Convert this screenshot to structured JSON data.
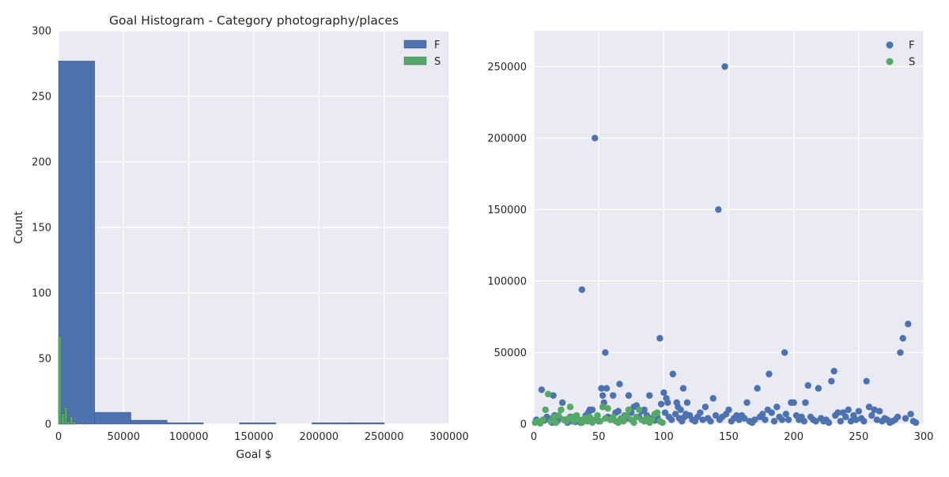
{
  "chart_data": [
    {
      "type": "bar",
      "title": "Goal Histogram - Category photography/places",
      "xlabel": "Goal $",
      "ylabel": "Count",
      "xlim": [
        0,
        300000
      ],
      "ylim": [
        0,
        300
      ],
      "xticks": [
        0,
        50000,
        100000,
        150000,
        200000,
        250000,
        300000
      ],
      "yticks": [
        0,
        50,
        100,
        150,
        200,
        250,
        300
      ],
      "grid": true,
      "legend_position": "top-right",
      "colors": {
        "background": "#eaeaf2",
        "grid": "#ffffff",
        "F": "#4c72b0",
        "S": "#55a868"
      },
      "series": [
        {
          "name": "F",
          "bins": [
            {
              "x0": 0,
              "x1": 27800,
              "count": 277
            },
            {
              "x0": 27800,
              "x1": 55600,
              "count": 9
            },
            {
              "x0": 55600,
              "x1": 83400,
              "count": 3
            },
            {
              "x0": 83400,
              "x1": 111200,
              "count": 1
            },
            {
              "x0": 111200,
              "x1": 139000,
              "count": 0
            },
            {
              "x0": 139000,
              "x1": 166800,
              "count": 1
            },
            {
              "x0": 166800,
              "x1": 194600,
              "count": 0
            },
            {
              "x0": 194600,
              "x1": 222400,
              "count": 1
            },
            {
              "x0": 222400,
              "x1": 250200,
              "count": 1
            }
          ]
        },
        {
          "name": "S",
          "bins": [
            {
              "x0": 0,
              "x1": 2200,
              "count": 67
            },
            {
              "x0": 2200,
              "x1": 4400,
              "count": 8
            },
            {
              "x0": 4400,
              "x1": 6600,
              "count": 13
            },
            {
              "x0": 6600,
              "x1": 8800,
              "count": 2
            },
            {
              "x0": 8800,
              "x1": 11000,
              "count": 6
            },
            {
              "x0": 11000,
              "x1": 13200,
              "count": 2
            },
            {
              "x0": 13200,
              "x1": 15400,
              "count": 0
            },
            {
              "x0": 15400,
              "x1": 17600,
              "count": 0
            },
            {
              "x0": 17600,
              "x1": 19800,
              "count": 0
            },
            {
              "x0": 19800,
              "x1": 22000,
              "count": 1
            }
          ]
        }
      ]
    },
    {
      "type": "scatter",
      "xlim": [
        0,
        300
      ],
      "ylim": [
        0,
        275000
      ],
      "xticks": [
        0,
        50,
        100,
        150,
        200,
        250,
        300
      ],
      "yticks": [
        0,
        50000,
        100000,
        150000,
        200000,
        250000
      ],
      "grid": true,
      "legend_position": "top-right",
      "colors": {
        "background": "#eaeaf2",
        "grid": "#ffffff",
        "F": "#4c72b0",
        "S": "#55a868"
      },
      "series": [
        {
          "name": "F",
          "points": [
            [
              2,
              3000
            ],
            [
              4,
              1500
            ],
            [
              6,
              24000
            ],
            [
              8,
              2500
            ],
            [
              10,
              5000
            ],
            [
              12,
              3000
            ],
            [
              14,
              1000
            ],
            [
              15,
              20000
            ],
            [
              16,
              6000
            ],
            [
              18,
              2000
            ],
            [
              20,
              4000
            ],
            [
              22,
              15000
            ],
            [
              24,
              3000
            ],
            [
              26,
              1000
            ],
            [
              28,
              5000
            ],
            [
              30,
              2000
            ],
            [
              32,
              1500
            ],
            [
              34,
              3000
            ],
            [
              36,
              1000
            ],
            [
              37,
              94000
            ],
            [
              40,
              6000
            ],
            [
              42,
              8000
            ],
            [
              43,
              10000
            ],
            [
              45,
              10000
            ],
            [
              47,
              200000
            ],
            [
              48,
              3000
            ],
            [
              50,
              2000
            ],
            [
              52,
              25000
            ],
            [
              53,
              20000
            ],
            [
              54,
              15000
            ],
            [
              55,
              50000
            ],
            [
              56,
              25000
            ],
            [
              57,
              5000
            ],
            [
              59,
              3000
            ],
            [
              61,
              20000
            ],
            [
              63,
              8000
            ],
            [
              65,
              9000
            ],
            [
              66,
              28000
            ],
            [
              68,
              3000
            ],
            [
              70,
              6000
            ],
            [
              72,
              4000
            ],
            [
              73,
              20000
            ],
            [
              75,
              8000
            ],
            [
              77,
              12000
            ],
            [
              79,
              13000
            ],
            [
              81,
              5000
            ],
            [
              83,
              9000
            ],
            [
              85,
              10000
            ],
            [
              87,
              6000
            ],
            [
              89,
              20000
            ],
            [
              91,
              4000
            ],
            [
              93,
              2500
            ],
            [
              95,
              5000
            ],
            [
              97,
              60000
            ],
            [
              98,
              14000
            ],
            [
              100,
              22000
            ],
            [
              101,
              8000
            ],
            [
              102,
              18000
            ],
            [
              103,
              15000
            ],
            [
              104,
              5000
            ],
            [
              106,
              3000
            ],
            [
              107,
              35000
            ],
            [
              109,
              7000
            ],
            [
              110,
              15000
            ],
            [
              111,
              12000
            ],
            [
              112,
              4000
            ],
            [
              113,
              10000
            ],
            [
              114,
              2000
            ],
            [
              115,
              25000
            ],
            [
              116,
              5000
            ],
            [
              117,
              7000
            ],
            [
              118,
              15000
            ],
            [
              120,
              6000
            ],
            [
              122,
              3000
            ],
            [
              124,
              2000
            ],
            [
              126,
              5000
            ],
            [
              128,
              8000
            ],
            [
              130,
              3000
            ],
            [
              132,
              12000
            ],
            [
              134,
              4000
            ],
            [
              136,
              2000
            ],
            [
              138,
              18000
            ],
            [
              140,
              6000
            ],
            [
              142,
              150000
            ],
            [
              143,
              3000
            ],
            [
              145,
              5000
            ],
            [
              147,
              250000
            ],
            [
              148,
              7000
            ],
            [
              150,
              10000
            ],
            [
              152,
              2000
            ],
            [
              154,
              4000
            ],
            [
              156,
              6000
            ],
            [
              158,
              3000
            ],
            [
              160,
              6000
            ],
            [
              162,
              4000
            ],
            [
              164,
              15000
            ],
            [
              166,
              2000
            ],
            [
              168,
              1000
            ],
            [
              170,
              3000
            ],
            [
              172,
              25000
            ],
            [
              174,
              5000
            ],
            [
              176,
              7000
            ],
            [
              178,
              3000
            ],
            [
              180,
              10000
            ],
            [
              181,
              35000
            ],
            [
              183,
              8000
            ],
            [
              185,
              2000
            ],
            [
              187,
              12000
            ],
            [
              189,
              5000
            ],
            [
              191,
              3000
            ],
            [
              193,
              50000
            ],
            [
              194,
              7000
            ],
            [
              196,
              3000
            ],
            [
              198,
              15000
            ],
            [
              200,
              15000
            ],
            [
              202,
              6000
            ],
            [
              204,
              3000
            ],
            [
              206,
              5000
            ],
            [
              208,
              2000
            ],
            [
              209,
              15000
            ],
            [
              211,
              27000
            ],
            [
              213,
              5000
            ],
            [
              215,
              3000
            ],
            [
              217,
              2000
            ],
            [
              219,
              25000
            ],
            [
              221,
              4000
            ],
            [
              223,
              2000
            ],
            [
              225,
              3000
            ],
            [
              227,
              1000
            ],
            [
              229,
              30000
            ],
            [
              231,
              37000
            ],
            [
              232,
              6000
            ],
            [
              234,
              8000
            ],
            [
              236,
              2000
            ],
            [
              238,
              8000
            ],
            [
              240,
              5000
            ],
            [
              242,
              10000
            ],
            [
              244,
              2000
            ],
            [
              246,
              6000
            ],
            [
              248,
              3000
            ],
            [
              250,
              9000
            ],
            [
              252,
              4000
            ],
            [
              254,
              2000
            ],
            [
              256,
              30000
            ],
            [
              258,
              12000
            ],
            [
              260,
              6000
            ],
            [
              262,
              10000
            ],
            [
              264,
              3000
            ],
            [
              266,
              9000
            ],
            [
              268,
              2000
            ],
            [
              270,
              4000
            ],
            [
              272,
              3000
            ],
            [
              274,
              1000
            ],
            [
              276,
              2000
            ],
            [
              278,
              3000
            ],
            [
              280,
              5000
            ],
            [
              282,
              50000
            ],
            [
              284,
              60000
            ],
            [
              286,
              4000
            ],
            [
              288,
              70000
            ],
            [
              290,
              7000
            ],
            [
              292,
              2000
            ],
            [
              294,
              1000
            ]
          ]
        },
        {
          "name": "S",
          "points": [
            [
              1,
              1000
            ],
            [
              3,
              2000
            ],
            [
              5,
              500
            ],
            [
              7,
              3000
            ],
            [
              9,
              10000
            ],
            [
              11,
              21000
            ],
            [
              13,
              2000
            ],
            [
              15,
              5000
            ],
            [
              17,
              1000
            ],
            [
              19,
              6000
            ],
            [
              21,
              10000
            ],
            [
              23,
              3000
            ],
            [
              25,
              2000
            ],
            [
              27,
              4000
            ],
            [
              28,
              12000
            ],
            [
              30,
              5000
            ],
            [
              31,
              2000
            ],
            [
              33,
              6000
            ],
            [
              35,
              3000
            ],
            [
              37,
              1000
            ],
            [
              39,
              4000
            ],
            [
              41,
              2000
            ],
            [
              43,
              5000
            ],
            [
              45,
              1000
            ],
            [
              47,
              3000
            ],
            [
              49,
              6000
            ],
            [
              51,
              2000
            ],
            [
              53,
              12000
            ],
            [
              55,
              4000
            ],
            [
              57,
              11000
            ],
            [
              59,
              3000
            ],
            [
              61,
              5000
            ],
            [
              63,
              2000
            ],
            [
              65,
              1000
            ],
            [
              67,
              4000
            ],
            [
              69,
              2000
            ],
            [
              71,
              6000
            ],
            [
              73,
              10000
            ],
            [
              75,
              3000
            ],
            [
              77,
              1000
            ],
            [
              79,
              5000
            ],
            [
              81,
              10000
            ],
            [
              83,
              3000
            ],
            [
              85,
              2000
            ],
            [
              87,
              4000
            ],
            [
              89,
              1000
            ],
            [
              91,
              3000
            ],
            [
              93,
              7000
            ],
            [
              95,
              8000
            ],
            [
              97,
              2000
            ],
            [
              99,
              1000
            ]
          ]
        }
      ]
    }
  ]
}
